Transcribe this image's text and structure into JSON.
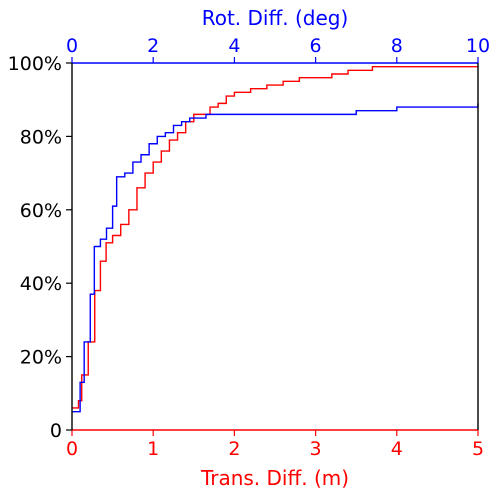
{
  "chart_data": {
    "type": "line",
    "title": "",
    "xlabel": "Trans. Diff. (m)",
    "x2label": "Rot. Diff. (deg)",
    "ylabel": "",
    "xlim": [
      0,
      5
    ],
    "x2lim": [
      0,
      10
    ],
    "ylim": [
      0,
      100
    ],
    "x_ticks": [
      "0",
      "1",
      "2",
      "3",
      "4",
      "5"
    ],
    "x2_ticks": [
      "0",
      "2",
      "4",
      "6",
      "8",
      "10"
    ],
    "y_ticks": [
      "0",
      "20%",
      "40%",
      "60%",
      "80%",
      "100%"
    ],
    "grid": false,
    "colors": {
      "bottom_axis": "#ff0000",
      "top_axis": "#0000ff",
      "left_axis": "#000000"
    },
    "series": [
      {
        "axis": "bottom",
        "color": "#ff0000",
        "x": [
          0.0,
          0.08,
          0.12,
          0.2,
          0.28,
          0.35,
          0.42,
          0.5,
          0.6,
          0.7,
          0.8,
          0.9,
          1.0,
          1.1,
          1.2,
          1.3,
          1.4,
          1.5,
          1.7,
          1.8,
          1.9,
          2.0,
          2.2,
          2.4,
          2.6,
          2.8,
          3.0,
          3.2,
          3.3,
          3.4,
          3.5,
          3.7,
          4.0,
          5.0
        ],
        "y": [
          6,
          8,
          15,
          24,
          38,
          46,
          51,
          53,
          56,
          60,
          66,
          70,
          73,
          76,
          79,
          81,
          84,
          86,
          88,
          89,
          91,
          92,
          93,
          94,
          95,
          96,
          96,
          97,
          97,
          98,
          98,
          99,
          99,
          99
        ]
      },
      {
        "axis": "top",
        "color": "#0000ff",
        "x": [
          0.0,
          0.2,
          0.3,
          0.45,
          0.55,
          0.7,
          0.85,
          1.0,
          1.1,
          1.3,
          1.5,
          1.7,
          1.9,
          2.1,
          2.3,
          2.5,
          2.7,
          2.9,
          3.1,
          3.3,
          3.5,
          5.5,
          7.0,
          8.0,
          9.0,
          10.0
        ],
        "y": [
          5,
          13,
          24,
          37,
          50,
          52,
          55,
          61,
          69,
          70,
          73,
          75,
          78,
          80,
          81,
          83,
          84,
          85,
          85,
          86,
          86,
          86,
          87,
          88,
          88,
          89
        ]
      }
    ]
  }
}
